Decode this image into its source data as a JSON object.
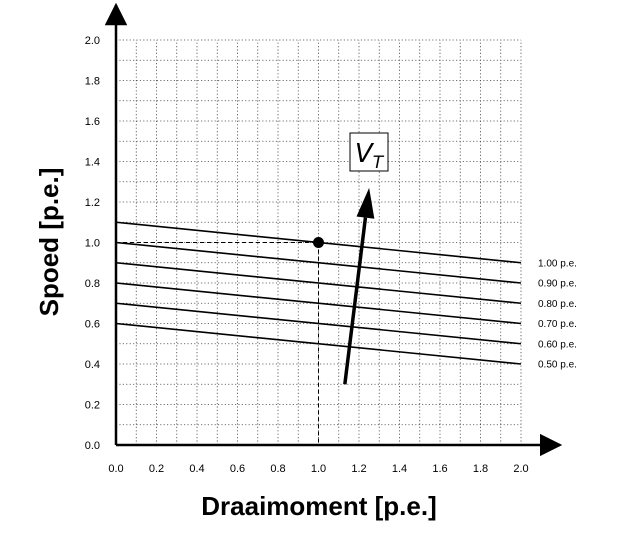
{
  "chart_data": {
    "type": "line",
    "xlabel": "Draaimoment [p.e.]",
    "ylabel": "Spoed [p.e.]",
    "xlim": [
      0,
      2.0
    ],
    "ylim": [
      0,
      2.0
    ],
    "xticks": [
      "0.0",
      "0.2",
      "0.4",
      "0.6",
      "0.8",
      "1.0",
      "1.2",
      "1.4",
      "1.6",
      "1.8",
      "2.0"
    ],
    "yticks": [
      "0.0",
      "0.2",
      "0.4",
      "0.6",
      "0.8",
      "1.0",
      "1.2",
      "1.4",
      "1.6",
      "1.8",
      "2.0"
    ],
    "grid": true,
    "grid_style": "dotted",
    "x": [
      0,
      2.0
    ],
    "series": [
      {
        "name": "1.00 p.e.",
        "values": [
          1.1,
          0.9
        ]
      },
      {
        "name": "0.90 p.e.",
        "values": [
          1.0,
          0.8
        ]
      },
      {
        "name": "0.80 p.e.",
        "values": [
          0.9,
          0.7
        ]
      },
      {
        "name": "0.70 p.e.",
        "values": [
          0.8,
          0.6
        ]
      },
      {
        "name": "0.60 p.e.",
        "values": [
          0.7,
          0.5
        ]
      },
      {
        "name": "0.50 p.e.",
        "values": [
          0.6,
          0.4
        ]
      }
    ],
    "operating_point": {
      "x": 1.0,
      "y": 1.0
    },
    "arrow": {
      "from": [
        1.13,
        0.3
      ],
      "to": [
        1.25,
        1.27
      ],
      "label_main": "V",
      "label_sub": "T"
    },
    "colors": {
      "line": "#000000",
      "grid": "#444444",
      "background": "#ffffff"
    }
  }
}
